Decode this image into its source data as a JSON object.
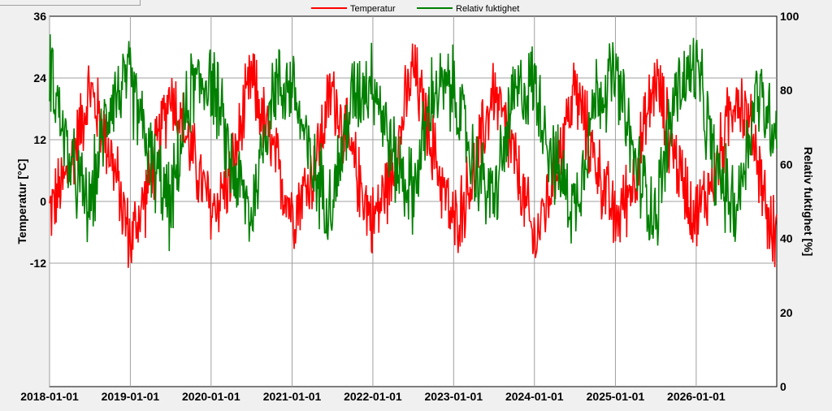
{
  "chart_data": {
    "type": "line",
    "legend": {
      "placement": "top-center"
    },
    "xlabel": "",
    "ylabel_left": "Temperatur [°C]",
    "ylabel_right": "Relativ fuktighet [%]",
    "x_range": [
      "2018-01-01",
      "2026-12-31"
    ],
    "x_ticks": [
      "2018-01-01",
      "2019-01-01",
      "2020-01-01",
      "2021-01-01",
      "2022-01-01",
      "2023-01-01",
      "2024-01-01",
      "2025-01-01",
      "2026-01-01"
    ],
    "y_left": {
      "min": -36,
      "max": 36,
      "ticks": [
        -12,
        0,
        12,
        24,
        36
      ]
    },
    "y_right": {
      "min": 0,
      "max": 100,
      "ticks": [
        0,
        20,
        40,
        60,
        80,
        100
      ]
    },
    "grid": true,
    "series": [
      {
        "name": "Temperatur",
        "axis": "left",
        "color": "#ff0000",
        "x": [
          "2018-01",
          "2018-04",
          "2018-07",
          "2018-10",
          "2019-01",
          "2019-04",
          "2019-07",
          "2019-10",
          "2020-01",
          "2020-04",
          "2020-07",
          "2020-10",
          "2021-01",
          "2021-04",
          "2021-07",
          "2021-10",
          "2022-01",
          "2022-04",
          "2022-07",
          "2022-10",
          "2023-01",
          "2023-04",
          "2023-07",
          "2023-10",
          "2024-01",
          "2024-04",
          "2024-07",
          "2024-10",
          "2025-01",
          "2025-04",
          "2025-07",
          "2025-10",
          "2026-01",
          "2026-04",
          "2026-07",
          "2026-10",
          "2026-12"
        ],
        "values": [
          -2,
          6,
          22,
          10,
          -8,
          4,
          22,
          10,
          -2,
          5,
          24,
          10,
          -2,
          5,
          22,
          8,
          -4,
          6,
          26,
          10,
          -5,
          5,
          22,
          8,
          -8,
          5,
          22,
          8,
          -4,
          5,
          24,
          8,
          -3,
          6,
          22,
          10,
          -6
        ]
      },
      {
        "name": "Relativ fuktighet",
        "axis": "right",
        "color": "#008000",
        "x": [
          "2018-01",
          "2018-04",
          "2018-07",
          "2018-10",
          "2019-01",
          "2019-04",
          "2019-07",
          "2019-10",
          "2020-01",
          "2020-04",
          "2020-07",
          "2020-10",
          "2021-01",
          "2021-04",
          "2021-07",
          "2021-10",
          "2022-01",
          "2022-04",
          "2022-07",
          "2022-10",
          "2023-01",
          "2023-04",
          "2023-07",
          "2023-10",
          "2024-01",
          "2024-04",
          "2024-07",
          "2024-10",
          "2025-01",
          "2025-04",
          "2025-07",
          "2025-10",
          "2026-01",
          "2026-04",
          "2026-07",
          "2026-10",
          "2026-12"
        ],
        "values": [
          88,
          60,
          48,
          78,
          82,
          62,
          48,
          80,
          84,
          60,
          46,
          80,
          82,
          58,
          50,
          78,
          84,
          62,
          52,
          80,
          80,
          60,
          50,
          78,
          82,
          60,
          48,
          78,
          84,
          60,
          46,
          80,
          86,
          58,
          48,
          80,
          72
        ]
      }
    ]
  }
}
